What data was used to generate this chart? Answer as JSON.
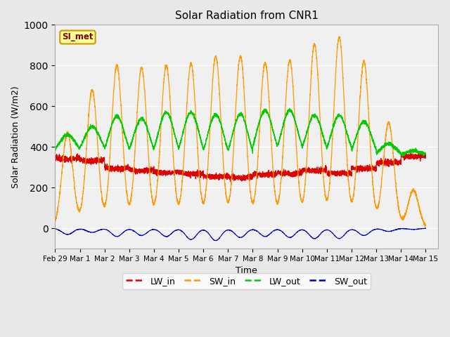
{
  "title": "Solar Radiation from CNR1",
  "xlabel": "Time",
  "ylabel": "Solar Radiation (W/m2)",
  "ylim": [
    -100,
    1000
  ],
  "xlim_days": 15.5,
  "fig_facecolor": "#e8e8e8",
  "plot_facecolor": "#f0f0f0",
  "grid_color": "#ffffff",
  "label_box_text": "SI_met",
  "label_box_facecolor": "#ffff99",
  "label_box_edgecolor": "#cc9900",
  "label_box_textcolor": "#880000",
  "series": {
    "LW_in": {
      "color": "#dd0000",
      "label": "LW_in"
    },
    "SW_in": {
      "color": "#ff9900",
      "label": "SW_in"
    },
    "LW_out": {
      "color": "#00cc00",
      "label": "LW_out"
    },
    "SW_out": {
      "color": "#0000bb",
      "label": "SW_out"
    }
  },
  "n_days": 15,
  "pts_per_day": 288,
  "SW_in_peaks": [
    470,
    680,
    800,
    790,
    800,
    810,
    845,
    845,
    815,
    825,
    905,
    940,
    820,
    520,
    185
  ],
  "LW_out_peaks": [
    460,
    500,
    550,
    540,
    570,
    570,
    560,
    560,
    580,
    580,
    555,
    555,
    525,
    415,
    380
  ],
  "LW_out_night": [
    360,
    355,
    325,
    325,
    320,
    320,
    310,
    305,
    330,
    330,
    330,
    330,
    330,
    350,
    355
  ],
  "LW_in_day": [
    340,
    330,
    295,
    285,
    275,
    270,
    255,
    250,
    265,
    270,
    285,
    280,
    300,
    330,
    355
  ],
  "LW_in_night": [
    350,
    340,
    300,
    290,
    280,
    275,
    260,
    255,
    270,
    275,
    290,
    270,
    295,
    325,
    360
  ],
  "SW_out_peaks": [
    30,
    20,
    40,
    35,
    40,
    55,
    60,
    45,
    40,
    45,
    50,
    50,
    35,
    15,
    5
  ]
}
